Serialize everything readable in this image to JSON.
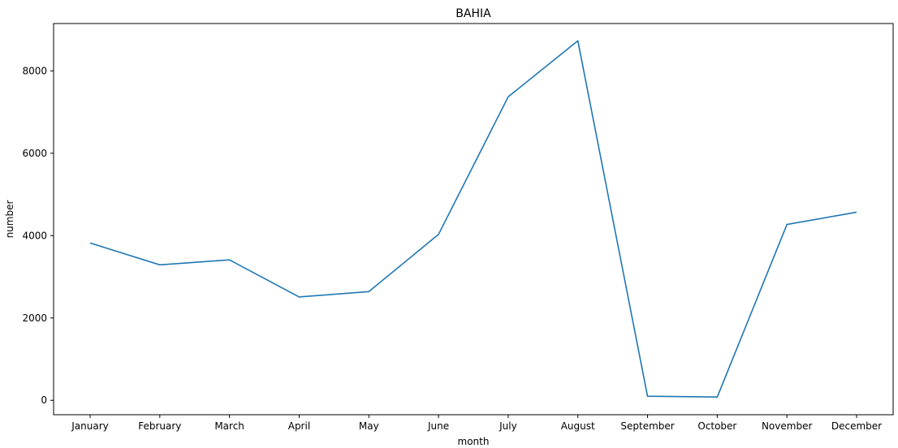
{
  "chart_data": {
    "type": "line",
    "title": "BAHIA",
    "xlabel": "month",
    "ylabel": "number",
    "categories": [
      "January",
      "February",
      "March",
      "April",
      "May",
      "June",
      "July",
      "August",
      "September",
      "October",
      "November",
      "December"
    ],
    "series": [
      {
        "color": "#1f77b4",
        "values": [
          3820,
          3290,
          3410,
          2510,
          2640,
          4030,
          7370,
          8730,
          100,
          80,
          4270,
          4570
        ]
      }
    ],
    "ylim": [
      -350,
      9150
    ],
    "yticks": [
      0,
      2000,
      4000,
      6000,
      8000
    ],
    "grid": false
  }
}
